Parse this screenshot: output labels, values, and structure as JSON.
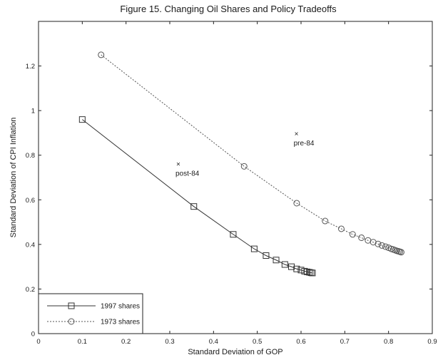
{
  "chart_data": {
    "type": "line",
    "title": "Figure 15. Changing Oil Shares and Policy Tradeoffs",
    "xlabel": "Standard Deviation of GOP",
    "ylabel": "Standard Deviation of CPI Inflation",
    "xlim": [
      0,
      0.9
    ],
    "ylim": [
      0,
      1.4
    ],
    "xticks": [
      "0",
      "0.1",
      "0.2",
      "0.3",
      "0.4",
      "0.5",
      "0.6",
      "0.7",
      "0.8",
      "0.9"
    ],
    "yticks": [
      "0",
      "0.2",
      "0.4",
      "0.6",
      "0.8",
      "1",
      "1.2"
    ],
    "grid": false,
    "legend_position": "bottom-left",
    "series": [
      {
        "name": "1997 shares",
        "marker": "square",
        "line_style": "solid",
        "color": "#333333",
        "x": [
          0.1,
          0.355,
          0.445,
          0.493,
          0.52,
          0.543,
          0.563,
          0.578,
          0.59,
          0.6,
          0.608,
          0.614,
          0.619,
          0.623,
          0.626
        ],
        "y": [
          0.96,
          0.57,
          0.445,
          0.38,
          0.35,
          0.33,
          0.31,
          0.3,
          0.29,
          0.285,
          0.28,
          0.277,
          0.275,
          0.273,
          0.272
        ]
      },
      {
        "name": "1973 shares",
        "marker": "circle",
        "line_style": "dotted",
        "color": "#555555",
        "x": [
          0.143,
          0.47,
          0.59,
          0.655,
          0.692,
          0.718,
          0.738,
          0.753,
          0.765,
          0.776,
          0.785,
          0.793,
          0.8,
          0.806,
          0.811,
          0.815,
          0.819,
          0.823,
          0.826,
          0.829
        ],
        "y": [
          1.25,
          0.75,
          0.585,
          0.505,
          0.47,
          0.445,
          0.43,
          0.418,
          0.41,
          0.402,
          0.395,
          0.39,
          0.385,
          0.38,
          0.377,
          0.374,
          0.371,
          0.369,
          0.367,
          0.365
        ]
      }
    ],
    "annotations": [
      {
        "text": "pre-84",
        "x": 0.583,
        "y": 0.885
      },
      {
        "text": "post-84",
        "x": 0.313,
        "y": 0.75
      }
    ]
  }
}
